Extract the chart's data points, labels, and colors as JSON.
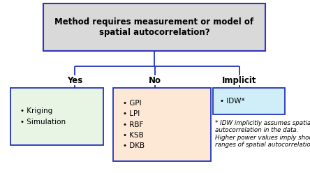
{
  "title_text": "Method requires measurement or model of\nspatial autocorrelation?",
  "title_box_color": "#d9d9d9",
  "title_box_edge": "#3333bb",
  "branch_labels": [
    "Yes",
    "No",
    "Implicit"
  ],
  "yes_items": "• Kriging\n• Simulation",
  "no_items": "• GPI\n• LPI\n• RBF\n• KSB\n• DKB",
  "implicit_items": "• IDW*",
  "yes_box_color": "#e8f5e5",
  "no_box_color": "#fde8d5",
  "implicit_box_color": "#d0eef8",
  "box_edge_color": "#2233bb",
  "line_color": "#2233bb",
  "footnote": "* IDW implicitly assumes spatial\nautocorrelation in the data.\nHigher power values imply shorter\nranges of spatial autocorrelation.",
  "background": "#ffffff",
  "title_fontsize": 8.5,
  "label_fontsize": 8.5,
  "item_fontsize": 7.5,
  "footnote_fontsize": 6.3
}
